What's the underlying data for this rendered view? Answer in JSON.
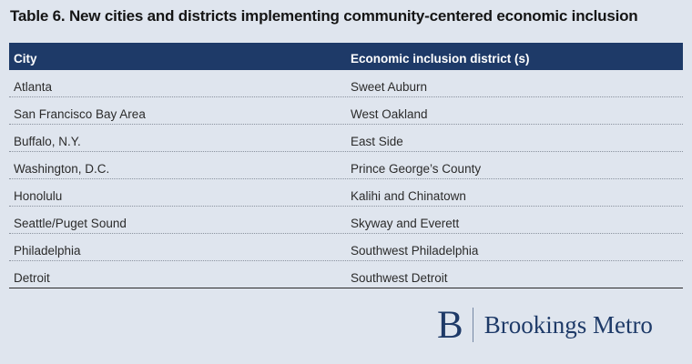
{
  "title": "Table 6. New cities and districts implementing community-centered economic inclusion",
  "table": {
    "headers": [
      "City",
      "Economic inclusion district (s)"
    ],
    "rows": [
      [
        "Atlanta",
        "Sweet Auburn"
      ],
      [
        "San Francisco Bay Area",
        "West Oakland"
      ],
      [
        "Buffalo, N.Y.",
        "East Side"
      ],
      [
        "Washington, D.C.",
        "Prince George’s County"
      ],
      [
        "Honolulu",
        "Kalihi and Chinatown"
      ],
      [
        "Seattle/Puget Sound",
        "Skyway and Everett"
      ],
      [
        "Philadelphia",
        "Southwest Philadelphia"
      ],
      [
        "Detroit",
        "Southwest Detroit"
      ]
    ]
  },
  "logo": {
    "mark": "B",
    "text": "Brookings Metro"
  },
  "colors": {
    "header_bg": "#1e3a68",
    "page_bg": "#dfe5ee",
    "brand": "#1e3a68"
  }
}
